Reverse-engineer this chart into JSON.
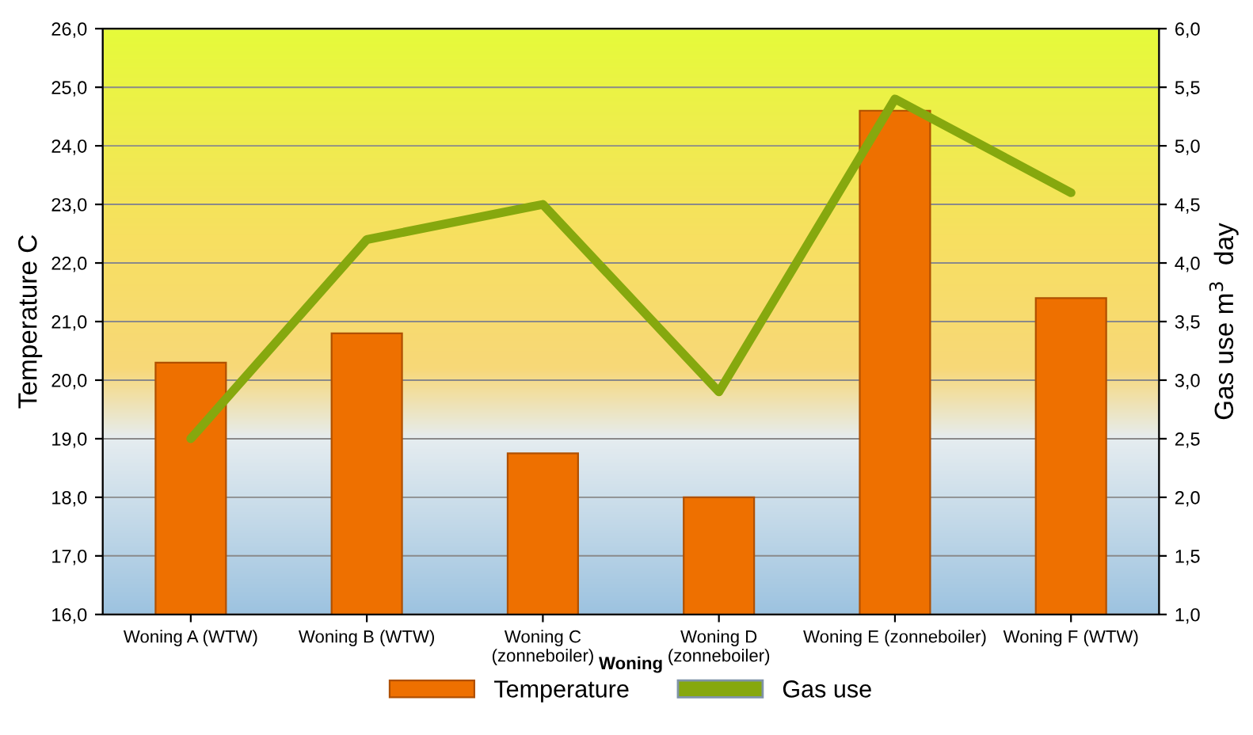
{
  "chart_data": {
    "type": "bar",
    "xlabel": "Woning",
    "ylabel": "Temperature C",
    "y2label": "Gas use m$^{3}$  day",
    "categories": [
      "Woning A (WTW)",
      "Woning B (WTW)",
      "Woning C\n(zonneboiler)",
      "Woning D\n(zonneboiler)",
      "Woning E (zonneboiler)",
      "Woning F (WTW)"
    ],
    "series": [
      {
        "name": "Temperature",
        "color": "#ee7000",
        "values": [
          20.3,
          20.8,
          18.75,
          18.0,
          24.6,
          21.4
        ]
      },
      {
        "name": "Gas use",
        "type": "line",
        "axis": "y2",
        "color": "#86a80e",
        "values": [
          2.5,
          4.2,
          4.5,
          2.9,
          5.4,
          4.6
        ]
      }
    ],
    "ylim": [
      16,
      26
    ],
    "yticks": [
      {
        "value": 16,
        "label": "16,0"
      },
      {
        "value": 17,
        "label": "17,0"
      },
      {
        "value": 18,
        "label": "18,0"
      },
      {
        "value": 19,
        "label": "19,0"
      },
      {
        "value": 20,
        "label": "20,0"
      },
      {
        "value": 21,
        "label": "21,0"
      },
      {
        "value": 22,
        "label": "22,0"
      },
      {
        "value": 23,
        "label": "23,0"
      },
      {
        "value": 24,
        "label": "24,0"
      },
      {
        "value": 25,
        "label": "25,0"
      },
      {
        "value": 26,
        "label": "26,0"
      }
    ],
    "y2lim": [
      1,
      6
    ],
    "y2ticks": [
      {
        "value": 1,
        "label": "1,0"
      },
      {
        "value": 1.5,
        "label": "1,5"
      },
      {
        "value": 2,
        "label": "2,0"
      },
      {
        "value": 2.5,
        "label": "2,5"
      },
      {
        "value": 3,
        "label": "3,0"
      },
      {
        "value": 3.5,
        "label": "3,5"
      },
      {
        "value": 4,
        "label": "4,0"
      },
      {
        "value": 4.5,
        "label": "4,5"
      },
      {
        "value": 5,
        "label": "5,0"
      },
      {
        "value": 5.5,
        "label": "5,5"
      },
      {
        "value": 6,
        "label": "6,0"
      }
    ],
    "grid": "y",
    "legend": "bottom",
    "marker": "none",
    "line_style": "solid"
  }
}
